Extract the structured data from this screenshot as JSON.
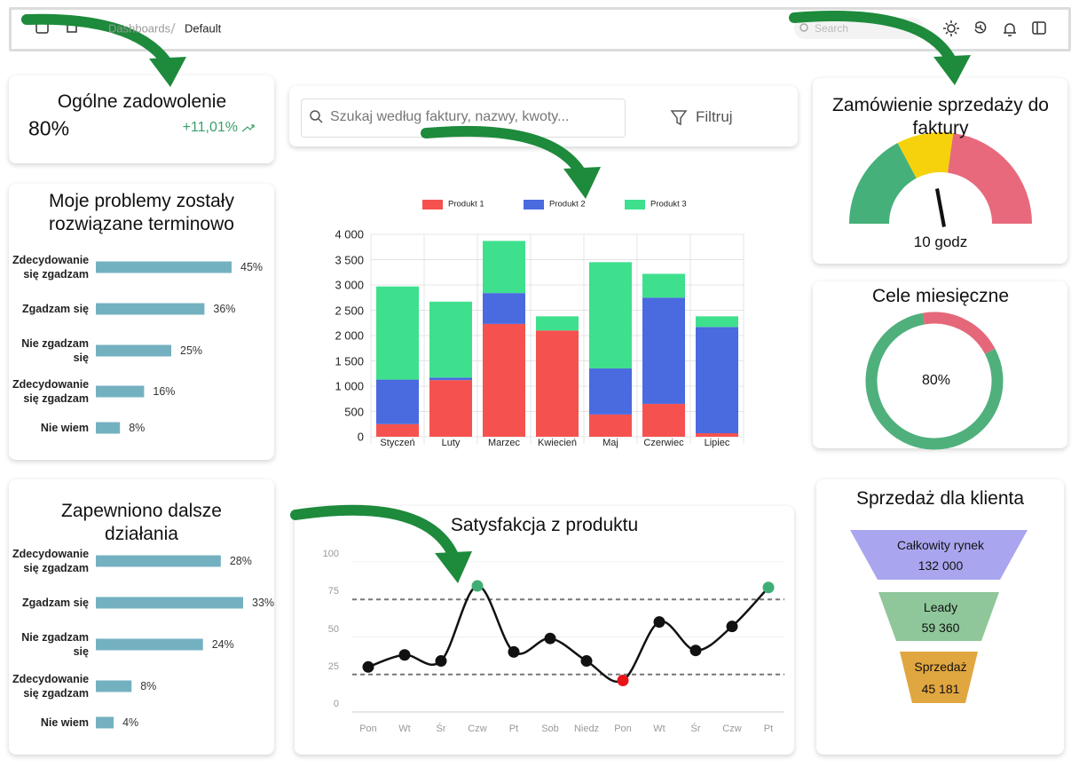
{
  "header": {
    "breadcrumb": [
      "Dashboards",
      "Default"
    ],
    "search_placeholder": "Search"
  },
  "kpi": {
    "title": "Ogólne zadowolenie",
    "value": "80%",
    "change": "+11,01%"
  },
  "search": {
    "placeholder": "Szukaj według faktury, nazwy, kwoty...",
    "button": "Filtruj"
  },
  "chart_data": [
    {
      "type": "hbar",
      "title": "Moje problemy zostały rozwiązane terminowo",
      "categories": [
        "Zdecydowanie się zgadzam",
        "Zgadzam się",
        "Nie zgadzam się",
        "Zdecydowanie się zgadzam",
        "Nie wiem"
      ],
      "values": [
        45,
        36,
        25,
        16,
        8
      ],
      "value_labels": [
        "45%",
        "36%",
        "25%",
        "16%",
        "8%"
      ],
      "color": "#74b1c0"
    },
    {
      "type": "stacked_bar",
      "categories": [
        "Styczeń",
        "Luty",
        "Marzec",
        "Kwiecień",
        "Maj",
        "Czerwiec",
        "Lipiec"
      ],
      "series": [
        {
          "name": "Produkt 1",
          "color": "#f5524f",
          "values": [
            250,
            1120,
            2230,
            2100,
            440,
            650,
            70
          ]
        },
        {
          "name": "Produkt 2",
          "color": "#4a6ae0",
          "values": [
            880,
            50,
            610,
            0,
            910,
            2100,
            2100
          ]
        },
        {
          "name": "Produkt 3",
          "color": "#3ee08e",
          "values": [
            1840,
            1500,
            1030,
            280,
            2100,
            470,
            210
          ]
        }
      ],
      "ylim": [
        0,
        4000
      ],
      "yticks": [
        0,
        500,
        {
          "value": 1000,
          "label": "1 000"
        },
        {
          "value": 1500,
          "label": "1 500"
        },
        {
          "value": 2000,
          "label": "2 000"
        },
        {
          "value": 2500,
          "label": "2 500"
        },
        {
          "value": 3000,
          "label": "3 000"
        },
        {
          "value": 3500,
          "label": "3 500"
        },
        {
          "value": 4000,
          "label": "4 000"
        }
      ],
      "grid": true,
      "legend": "top"
    },
    {
      "type": "gauge",
      "title": "Zamówienie sprzedaży do faktury",
      "value": 10,
      "value_label": "10 godz",
      "colors": [
        "#45b07a",
        "#f6d20c",
        "#e8697c"
      ]
    },
    {
      "type": "donut",
      "title": "Cele miesięczne",
      "value": 80,
      "value_label": "80%",
      "colors": [
        "#4fb07c",
        "#e5687a"
      ]
    },
    {
      "type": "hbar",
      "title": "Zapewniono dalsze działania",
      "categories": [
        "Zdecydowanie się zgadzam",
        "Zgadzam się",
        "Nie zgadzam się",
        "Zdecydowanie się zgadzam",
        "Nie wiem"
      ],
      "values": [
        28,
        33,
        24,
        8,
        4
      ],
      "value_labels": [
        "28%",
        "33%",
        "24%",
        "8%",
        "4%"
      ],
      "color": "#74b1c0"
    },
    {
      "type": "line",
      "title": "Satysfakcja z produktu",
      "categories": [
        "Pon",
        "Wt",
        "Śr",
        "Czw",
        "Pt",
        "Sob",
        "Niedz",
        "Pon",
        "Wt",
        "Śr",
        "Czw",
        "Pt"
      ],
      "values": [
        30,
        38,
        34,
        84,
        40,
        49,
        34,
        21,
        60,
        41,
        57,
        83
      ],
      "color": "#111111",
      "point_colors": [
        "#111111",
        "#111111",
        "#111111",
        "#3fae74",
        "#111111",
        "#111111",
        "#111111",
        "#e8141a",
        "#111111",
        "#111111",
        "#111111",
        "#3fae74"
      ],
      "ylim": [
        0,
        100
      ],
      "yticks": [
        0,
        25,
        50,
        75,
        100
      ],
      "reference_lines": [
        25,
        75
      ],
      "grid": true
    },
    {
      "type": "funnel",
      "title": "Sprzedaż dla klienta",
      "categories": [
        "Całkowity rynek",
        "Leady",
        "Sprzedaż"
      ],
      "values": [
        132000,
        59360,
        45181
      ],
      "value_labels": [
        "132 000",
        "59 360",
        "45 181"
      ],
      "colors": [
        "#a9a6ef",
        "#8fc79a",
        "#e0a640"
      ]
    }
  ]
}
